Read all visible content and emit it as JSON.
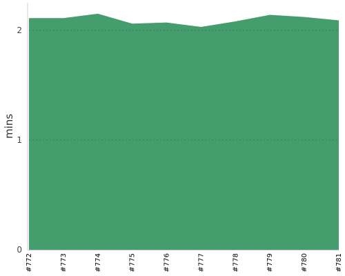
{
  "chart_data": {
    "type": "area",
    "categories": [
      "#772",
      "#773",
      "#774",
      "#775",
      "#776",
      "#777",
      "#778",
      "#779",
      "#780",
      "#781"
    ],
    "series": [
      {
        "values": [
          2.11,
          2.11,
          2.15,
          2.06,
          2.07,
          2.03,
          2.08,
          2.14,
          2.12,
          2.09
        ]
      }
    ],
    "ylabel": "mins",
    "xlabel": "",
    "ylim": [
      0,
      2.25
    ],
    "yticks": [
      "0",
      "1",
      "2"
    ],
    "grid": true,
    "colors": {
      "fill": "#459c6d",
      "grid": "#2f7a52",
      "axis": "#cccccc"
    }
  }
}
